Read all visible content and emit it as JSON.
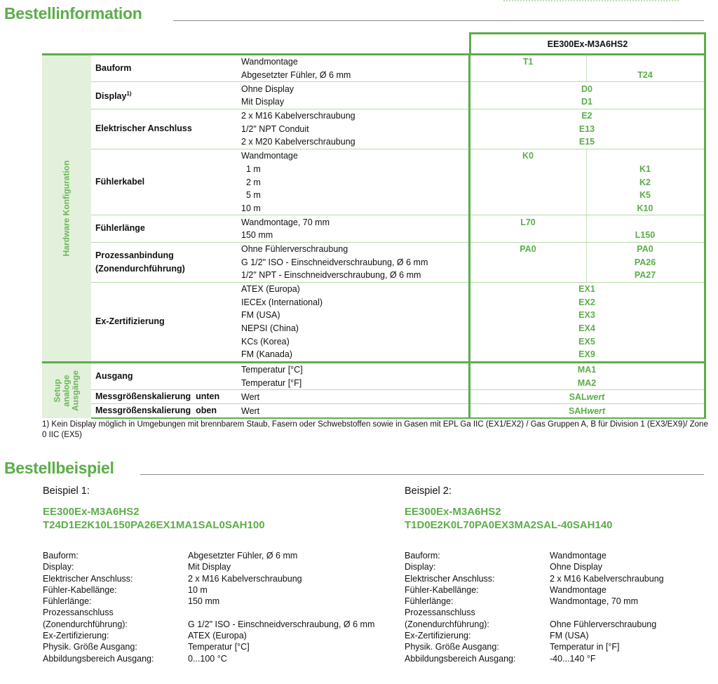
{
  "section1": {
    "title": "Bestellinformation",
    "product_header": "EE300Ex-M3A6HS2",
    "side_label_hw": "Hardware Konfiguration",
    "side_label_setup": "Setup analoge Ausgänge"
  },
  "groups": [
    {
      "name": "Bauform",
      "sup": "",
      "options": [
        {
          "label": "Wandmontage",
          "left": "T1",
          "right": ""
        },
        {
          "label": "Abgesetzter Fühler, Ø 6 mm",
          "left": "",
          "right": "T24"
        }
      ]
    },
    {
      "name": "Display",
      "sup": "1)",
      "options": [
        {
          "label": "Ohne Display",
          "full": "D0"
        },
        {
          "label": "Mit Display",
          "full": "D1"
        }
      ]
    },
    {
      "name": "Elektrischer Anschluss",
      "sup": "",
      "options": [
        {
          "label": "2 x M16 Kabelverschraubung",
          "full": "E2"
        },
        {
          "label": "1/2\" NPT Conduit",
          "full": "E13"
        },
        {
          "label": "2 x M20 Kabelverschraubung",
          "full": "E15"
        }
      ]
    },
    {
      "name": "Fühlerkabel",
      "sup": "",
      "options": [
        {
          "label": "Wandmontage",
          "left": "K0",
          "right": ""
        },
        {
          "label": "  1 m",
          "left": "",
          "right": "K1"
        },
        {
          "label": "  2 m",
          "left": "",
          "right": "K2"
        },
        {
          "label": "  5 m",
          "left": "",
          "right": "K5"
        },
        {
          "label": "10 m",
          "left": "",
          "right": "K10"
        }
      ]
    },
    {
      "name": "Fühlerlänge",
      "sup": "",
      "options": [
        {
          "label": "Wandmontage, 70 mm",
          "left": "L70",
          "right": ""
        },
        {
          "label": "150 mm",
          "left": "",
          "right": "L150"
        }
      ]
    },
    {
      "name": "Prozessanbindung (Zonendurchführung)",
      "sup": "",
      "options": [
        {
          "label": "Ohne Fühlerverschraubung",
          "left": "PA0",
          "right": "PA0"
        },
        {
          "label": "G 1/2\" ISO - Einschneidverschraubung, Ø 6 mm",
          "left": "",
          "right": "PA26"
        },
        {
          "label": "1/2\" NPT - Einschneidverschraubung, Ø 6 mm",
          "left": "",
          "right": "PA27"
        }
      ]
    },
    {
      "name": "Ex-Zertifizierung",
      "sup": "",
      "options": [
        {
          "label": "ATEX (Europa)",
          "full": "EX1"
        },
        {
          "label": "IECEx (International)",
          "full": "EX2"
        },
        {
          "label": "FM (USA)",
          "full": "EX3"
        },
        {
          "label": "NEPSI (China)",
          "full": "EX4"
        },
        {
          "label": "KCs (Korea)",
          "full": "EX5"
        },
        {
          "label": "FM (Kanada)",
          "full": "EX9"
        }
      ]
    },
    {
      "name": "Ausgang",
      "sup": "",
      "setup": true,
      "options": [
        {
          "label": "Temperatur [°C]",
          "full": "MA1"
        },
        {
          "label": "Temperatur [°F]",
          "full": "MA2"
        }
      ]
    },
    {
      "name": "Messgrößenskalierung  unten",
      "sup": "",
      "setup": true,
      "options": [
        {
          "label": "Wert",
          "full": "SAL",
          "full_italic": "wert"
        }
      ]
    },
    {
      "name": "Messgrößenskalierung  oben",
      "sup": "",
      "setup": true,
      "options": [
        {
          "label": "Wert",
          "full": "SAH",
          "full_italic": "wert"
        }
      ]
    }
  ],
  "footnote": "1) Kein Display möglich in Umgebungen mit brennbarem Staub, Fasern oder Schwebstoffen sowie in Gasen mit EPL Ga IIC (EX1/EX2) / Gas Gruppen A, B für Division 1 (EX3/EX9)/ Zone 0 IIC (EX5)",
  "section2": {
    "title": "Bestellbeispiel"
  },
  "examples": [
    {
      "label": "Beispiel 1:",
      "code1": "EE300Ex-M3A6HS2",
      "code2": "T24D1E2K10L150PA26EX1MA1SAL0SAH100",
      "rows": [
        [
          "Bauform:",
          "Abgesetzter Fühler, Ø 6 mm"
        ],
        [
          "Display:",
          "Mit Display"
        ],
        [
          "Elektrischer Anschluss:",
          "2 x M16 Kabelverschraubung"
        ],
        [
          "Fühler-Kabellänge:",
          "10 m"
        ],
        [
          "Fühlerlänge:",
          "150 mm"
        ],
        [
          "Prozessanschluss",
          ""
        ],
        [
          "(Zonendurchführung):",
          "G 1/2\" ISO - Einschneidverschraubung, Ø 6 mm"
        ],
        [
          "Ex-Zertifizierung:",
          "ATEX (Europa)"
        ],
        [
          "Physik. Größe Ausgang:",
          "Temperatur [°C]"
        ],
        [
          "Abbildungsbereich Ausgang:",
          "0...100 °C"
        ]
      ]
    },
    {
      "label": "Beispiel 2:",
      "code1": "EE300Ex-M3A6HS2",
      "code2": "T1D0E2K0L70PA0EX3MA2SAL-40SAH140",
      "rows": [
        [
          "Bauform:",
          "Wandmontage"
        ],
        [
          "Display:",
          "Ohne Display"
        ],
        [
          "Elektrischer Anschluss:",
          "2 x M16 Kabelverschraubung"
        ],
        [
          "Fühler-Kabellänge:",
          "Wandmontage"
        ],
        [
          "Fühlerlänge:",
          "Wandmontage, 70 mm"
        ],
        [
          "Prozessanschluss",
          ""
        ],
        [
          "(Zonendurchführung):",
          "Ohne Fühlerverschraubung"
        ],
        [
          "Ex-Zertifizierung:",
          "FM (USA)"
        ],
        [
          "Physik. Größe Ausgang:",
          "Temperatur in [°F]"
        ],
        [
          "Abbildungsbereich Ausgang:",
          "-40...140 °F"
        ]
      ]
    }
  ]
}
